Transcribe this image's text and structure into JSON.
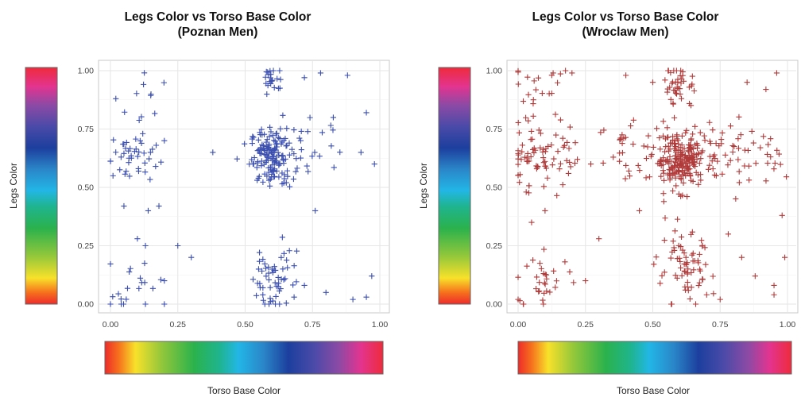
{
  "chart_data": [
    {
      "type": "scatter",
      "title": "Legs Color vs Torso Base Color",
      "subtitle": "(Poznan Men)",
      "xlabel": "Torso Base Color",
      "ylabel": "Legs Color",
      "xlim": [
        0,
        1
      ],
      "ylim": [
        0,
        1
      ],
      "x_ticks": [
        "0.00",
        "0.25",
        "0.50",
        "0.75",
        "1.00"
      ],
      "y_ticks": [
        "0.00",
        "0.25",
        "0.50",
        "0.75",
        "1.00"
      ],
      "grid": true,
      "marker": "plus",
      "color": "#3b4fb0",
      "clusters": [
        {
          "cx": 0.6,
          "cy": 0.63,
          "sx": 0.04,
          "sy": 0.06,
          "n": 150
        },
        {
          "cx": 0.6,
          "cy": 0.96,
          "sx": 0.02,
          "sy": 0.03,
          "n": 22
        },
        {
          "cx": 0.61,
          "cy": 0.12,
          "sx": 0.04,
          "sy": 0.09,
          "n": 55
        },
        {
          "cx": 0.07,
          "cy": 0.63,
          "sx": 0.05,
          "sy": 0.05,
          "n": 40
        },
        {
          "cx": 0.09,
          "cy": 0.09,
          "sx": 0.04,
          "sy": 0.05,
          "n": 16
        },
        {
          "cx": 0.12,
          "cy": 0.88,
          "sx": 0.04,
          "sy": 0.06,
          "n": 10
        },
        {
          "cx": 0.75,
          "cy": 0.66,
          "sx": 0.07,
          "sy": 0.07,
          "n": 22
        }
      ],
      "points": [
        [
          0.38,
          0.65
        ],
        [
          0.25,
          0.25
        ],
        [
          0.05,
          0.42
        ],
        [
          0.3,
          0.2
        ],
        [
          0.2,
          0.1
        ],
        [
          0.88,
          0.98
        ],
        [
          0.95,
          0.82
        ],
        [
          0.98,
          0.6
        ],
        [
          0.93,
          0.65
        ],
        [
          0.97,
          0.12
        ],
        [
          0.95,
          0.03
        ],
        [
          0.9,
          0.02
        ],
        [
          0.78,
          0.99
        ],
        [
          0.72,
          0.97
        ],
        [
          0.8,
          0.05
        ],
        [
          0.72,
          0.08
        ],
        [
          0.76,
          0.4
        ],
        [
          0.2,
          0.7
        ],
        [
          0.18,
          0.42
        ],
        [
          0.14,
          0.4
        ],
        [
          0.1,
          0.28
        ],
        [
          0.13,
          0.25
        ],
        [
          0.12,
          0.73
        ],
        [
          0.02,
          0.88
        ],
        [
          0.0,
          0.0
        ],
        [
          0.04,
          0.0
        ],
        [
          0.13,
          0.0
        ],
        [
          0.2,
          0.0
        ],
        [
          0.55,
          0.15
        ]
      ]
    },
    {
      "type": "scatter",
      "title": "Legs Color vs Torso Base Color",
      "subtitle": "(Wroclaw Men)",
      "xlabel": "Torso Base Color",
      "ylabel": "Legs Color",
      "xlim": [
        0,
        1
      ],
      "ylim": [
        0,
        1
      ],
      "x_ticks": [
        "0.00",
        "0.25",
        "0.50",
        "0.75",
        "1.00"
      ],
      "y_ticks": [
        "0.00",
        "0.25",
        "0.50",
        "0.75",
        "1.00"
      ],
      "grid": true,
      "marker": "plus",
      "color": "#b03a3a",
      "clusters": [
        {
          "cx": 0.6,
          "cy": 0.62,
          "sx": 0.05,
          "sy": 0.06,
          "n": 230
        },
        {
          "cx": 0.6,
          "cy": 0.94,
          "sx": 0.03,
          "sy": 0.05,
          "n": 40
        },
        {
          "cx": 0.62,
          "cy": 0.14,
          "sx": 0.05,
          "sy": 0.08,
          "n": 70
        },
        {
          "cx": 0.07,
          "cy": 0.62,
          "sx": 0.07,
          "sy": 0.06,
          "n": 70
        },
        {
          "cx": 0.1,
          "cy": 0.1,
          "sx": 0.05,
          "sy": 0.06,
          "n": 30
        },
        {
          "cx": 0.08,
          "cy": 0.9,
          "sx": 0.06,
          "sy": 0.07,
          "n": 25
        },
        {
          "cx": 0.95,
          "cy": 0.62,
          "sx": 0.04,
          "sy": 0.05,
          "n": 15
        },
        {
          "cx": 0.78,
          "cy": 0.66,
          "sx": 0.07,
          "sy": 0.08,
          "n": 35
        },
        {
          "cx": 0.42,
          "cy": 0.65,
          "sx": 0.06,
          "sy": 0.1,
          "n": 25
        }
      ],
      "points": [
        [
          0.2,
          0.99
        ],
        [
          0.13,
          0.99
        ],
        [
          0.96,
          0.99
        ],
        [
          0.85,
          0.95
        ],
        [
          0.92,
          0.92
        ],
        [
          0.98,
          0.38
        ],
        [
          0.95,
          0.04
        ],
        [
          0.95,
          0.08
        ],
        [
          0.99,
          0.2
        ],
        [
          0.88,
          0.12
        ],
        [
          0.83,
          0.2
        ],
        [
          0.78,
          0.3
        ],
        [
          0.3,
          0.28
        ],
        [
          0.25,
          0.1
        ],
        [
          0.27,
          0.6
        ],
        [
          0.22,
          0.62
        ],
        [
          0.05,
          0.35
        ],
        [
          0.1,
          0.4
        ],
        [
          0.03,
          0.48
        ],
        [
          0.02,
          0.0
        ],
        [
          0.0,
          0.02
        ],
        [
          0.75,
          0.02
        ],
        [
          0.7,
          0.04
        ],
        [
          0.45,
          0.4
        ],
        [
          0.4,
          0.98
        ],
        [
          0.5,
          0.95
        ]
      ]
    }
  ]
}
